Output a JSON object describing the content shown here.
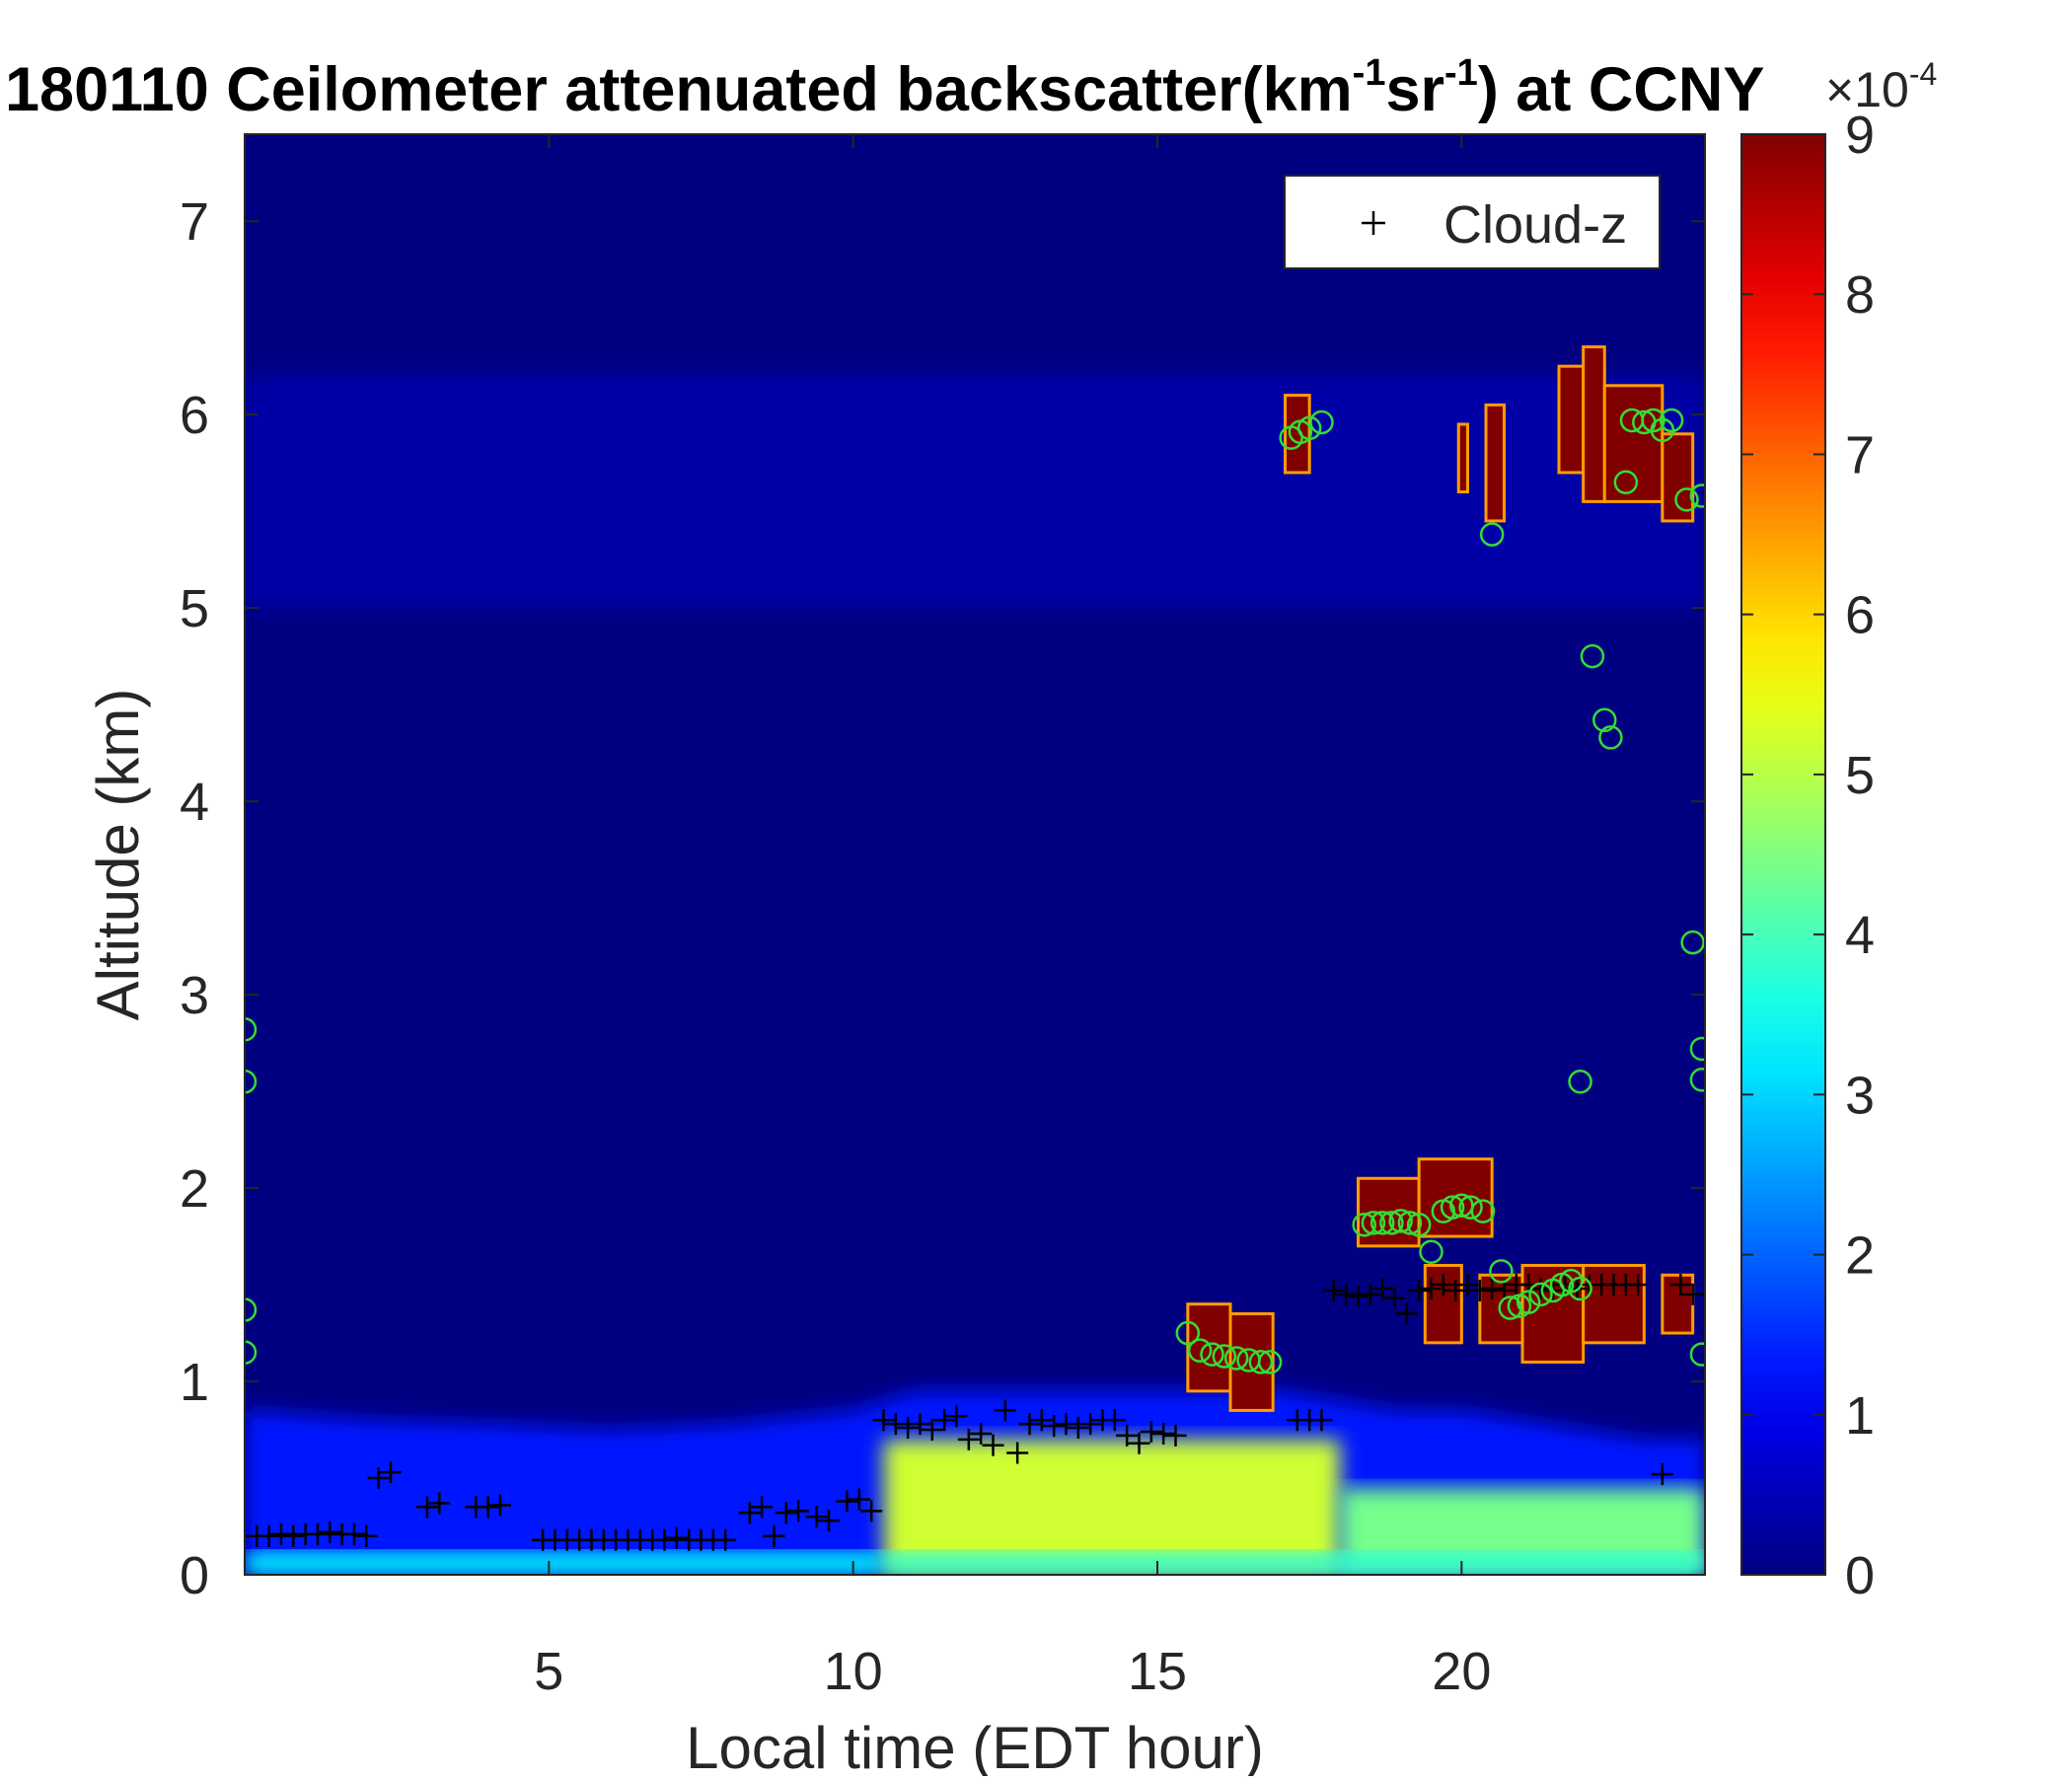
{
  "chart_data": {
    "type": "heatmap",
    "title_parts": {
      "prefix": "180110 Ceilometer attenuated backscatter(km",
      "sup1": "-1",
      "mid": "sr",
      "sup2": "-1",
      "suffix": ") at CCNY"
    },
    "xlabel": "Local time (EDT hour)",
    "ylabel": "Altitude (km)",
    "xlim": [
      0,
      24
    ],
    "ylim": [
      0,
      7.45
    ],
    "xticks": [
      5,
      10,
      15,
      20
    ],
    "yticks": [
      0,
      1,
      2,
      3,
      4,
      5,
      6,
      7
    ],
    "colorbar": {
      "colormap": "jet",
      "range": [
        0,
        9
      ],
      "ticks": [
        0,
        1,
        2,
        3,
        4,
        5,
        6,
        7,
        8,
        9
      ],
      "exponent_label": "×10",
      "exponent": "-4"
    },
    "legend": {
      "position": "top-right",
      "entries": [
        {
          "marker": "+",
          "label": "Cloud-z"
        }
      ]
    },
    "background_color": "#000080",
    "aerosol_layer": {
      "description_free_values": true,
      "profile_times": [
        0,
        2,
        4,
        6,
        8,
        10,
        10.5,
        11,
        12,
        14,
        15,
        16,
        17,
        18,
        19,
        20,
        21,
        22,
        23,
        24
      ],
      "profile_tops_km": [
        0.85,
        0.8,
        0.78,
        0.75,
        0.78,
        0.85,
        0.9,
        0.95,
        0.95,
        0.95,
        0.95,
        0.95,
        0.95,
        0.9,
        0.85,
        0.85,
        0.8,
        0.75,
        0.7,
        0.7
      ],
      "bright_segments": [
        {
          "t0": 10.5,
          "t1": 18.0,
          "z0": 0.0,
          "z1": 0.7,
          "level": 5.2
        },
        {
          "t0": 18.0,
          "t1": 24.0,
          "z0": 0.0,
          "z1": 0.45,
          "level": 4.4
        },
        {
          "t0": 0.0,
          "t1": 10.5,
          "z0": 0.0,
          "z1": 0.12,
          "level": 3.4
        },
        {
          "t0": 10.5,
          "t1": 24.0,
          "z0": 0.0,
          "z1": 0.12,
          "level": 3.8
        }
      ]
    },
    "saturated_blocks": [
      {
        "t0": 17.1,
        "t1": 17.5,
        "z0": 5.7,
        "z1": 6.1
      },
      {
        "t0": 19.95,
        "t1": 20.1,
        "z0": 5.6,
        "z1": 5.95
      },
      {
        "t0": 20.4,
        "t1": 20.7,
        "z0": 5.45,
        "z1": 6.05
      },
      {
        "t0": 21.6,
        "t1": 22.0,
        "z0": 5.7,
        "z1": 6.25
      },
      {
        "t0": 22.0,
        "t1": 22.35,
        "z0": 5.55,
        "z1": 6.35
      },
      {
        "t0": 22.35,
        "t1": 23.3,
        "z0": 5.55,
        "z1": 6.15
      },
      {
        "t0": 23.3,
        "t1": 23.8,
        "z0": 5.45,
        "z1": 5.9
      },
      {
        "t0": 15.5,
        "t1": 16.2,
        "z0": 0.95,
        "z1": 1.4
      },
      {
        "t0": 16.2,
        "t1": 16.9,
        "z0": 0.85,
        "z1": 1.35
      },
      {
        "t0": 18.3,
        "t1": 19.3,
        "z0": 1.7,
        "z1": 2.05
      },
      {
        "t0": 19.3,
        "t1": 20.5,
        "z0": 1.75,
        "z1": 2.15
      },
      {
        "t0": 19.4,
        "t1": 20.0,
        "z0": 1.2,
        "z1": 1.6
      },
      {
        "t0": 20.3,
        "t1": 21.0,
        "z0": 1.2,
        "z1": 1.55
      },
      {
        "t0": 21.0,
        "t1": 22.0,
        "z0": 1.1,
        "z1": 1.6
      },
      {
        "t0": 22.0,
        "t1": 23.0,
        "z0": 1.2,
        "z1": 1.6
      },
      {
        "t0": 23.3,
        "t1": 23.8,
        "z0": 1.25,
        "z1": 1.55
      }
    ],
    "series": [
      {
        "name": "Cloud-z",
        "marker": "+",
        "color": "#000000",
        "x": [
          0.2,
          0.4,
          0.6,
          0.8,
          1.0,
          1.2,
          1.4,
          1.6,
          1.8,
          2.0,
          2.2,
          2.4,
          3.0,
          3.2,
          3.8,
          4.0,
          4.2,
          4.9,
          5.1,
          5.3,
          5.5,
          5.7,
          5.9,
          6.1,
          6.3,
          6.5,
          6.7,
          6.9,
          7.1,
          7.3,
          7.5,
          7.7,
          7.9,
          8.3,
          8.5,
          8.7,
          8.9,
          9.1,
          9.4,
          9.6,
          9.9,
          10.1,
          10.3,
          10.5,
          10.7,
          10.9,
          11.1,
          11.3,
          11.5,
          11.7,
          11.9,
          12.1,
          12.3,
          12.5,
          12.7,
          12.9,
          13.1,
          13.3,
          13.5,
          13.7,
          13.9,
          14.1,
          14.3,
          14.5,
          14.7,
          14.9,
          15.1,
          15.3,
          17.3,
          17.5,
          17.7,
          17.9,
          18.1,
          18.3,
          18.5,
          18.7,
          18.9,
          19.1,
          19.3,
          19.5,
          19.7,
          19.9,
          20.1,
          20.3,
          20.5,
          20.7,
          20.9,
          21.1,
          21.3,
          21.5,
          21.7,
          21.9,
          22.1,
          22.3,
          22.5,
          22.7,
          22.9,
          23.3,
          23.6,
          23.8
        ],
        "y": [
          0.2,
          0.2,
          0.21,
          0.2,
          0.21,
          0.21,
          0.22,
          0.21,
          0.21,
          0.2,
          0.5,
          0.53,
          0.35,
          0.37,
          0.35,
          0.35,
          0.36,
          0.18,
          0.18,
          0.18,
          0.18,
          0.18,
          0.18,
          0.18,
          0.18,
          0.18,
          0.18,
          0.18,
          0.19,
          0.18,
          0.18,
          0.18,
          0.18,
          0.32,
          0.35,
          0.2,
          0.32,
          0.33,
          0.3,
          0.28,
          0.38,
          0.39,
          0.33,
          0.8,
          0.78,
          0.76,
          0.78,
          0.75,
          0.8,
          0.82,
          0.7,
          0.73,
          0.67,
          0.85,
          0.63,
          0.78,
          0.8,
          0.77,
          0.78,
          0.76,
          0.78,
          0.8,
          0.8,
          0.72,
          0.68,
          0.74,
          0.73,
          0.72,
          0.8,
          0.8,
          0.8,
          1.47,
          1.45,
          1.44,
          1.45,
          1.48,
          1.43,
          1.35,
          1.47,
          1.48,
          1.5,
          1.47,
          1.5,
          1.47,
          1.48,
          1.47,
          1.5,
          1.5,
          1.48,
          1.47,
          1.5,
          1.48,
          1.5,
          1.5,
          1.5,
          1.5,
          1.5,
          0.52,
          1.5,
          1.45
        ]
      },
      {
        "marker": "o",
        "color": "#33dd33",
        "x": [
          0.0,
          0.0,
          0.0,
          0.0,
          17.2,
          17.35,
          17.5,
          17.7,
          15.5,
          15.7,
          15.9,
          16.1,
          16.3,
          16.5,
          16.7,
          16.85,
          18.4,
          18.55,
          18.7,
          18.85,
          19.0,
          19.15,
          19.3,
          19.5,
          19.7,
          19.85,
          20.0,
          20.15,
          20.35,
          20.65,
          20.8,
          20.95,
          21.1,
          21.3,
          21.5,
          21.65,
          21.8,
          21.95,
          21.95,
          22.15,
          22.35,
          22.45,
          22.7,
          22.8,
          23.0,
          23.15,
          23.3,
          23.45,
          23.7,
          23.95,
          23.8,
          23.95,
          23.95,
          23.95,
          20.5
        ],
        "y": [
          2.82,
          2.55,
          1.37,
          1.15,
          5.88,
          5.91,
          5.93,
          5.96,
          1.25,
          1.16,
          1.14,
          1.13,
          1.12,
          1.11,
          1.1,
          1.1,
          1.81,
          1.82,
          1.82,
          1.82,
          1.83,
          1.82,
          1.81,
          1.67,
          1.88,
          1.9,
          1.91,
          1.9,
          1.88,
          1.57,
          1.38,
          1.39,
          1.41,
          1.45,
          1.47,
          1.5,
          1.52,
          1.48,
          2.55,
          4.75,
          4.42,
          4.33,
          5.65,
          5.97,
          5.96,
          5.97,
          5.92,
          5.97,
          5.56,
          5.58,
          3.27,
          2.72,
          2.56,
          1.14,
          5.38
        ]
      }
    ]
  }
}
